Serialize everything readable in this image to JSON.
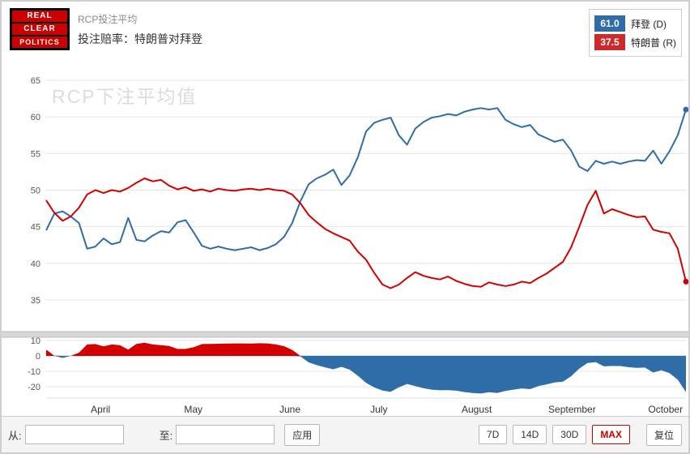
{
  "header": {
    "logo_lines": [
      "REAL",
      "CLEAR",
      "POLITICS"
    ],
    "subtitle": "RCP投注平均",
    "title": "投注赔率：特朗普对拜登"
  },
  "legend": [
    {
      "value": "61.0",
      "label": "拜登 (D)",
      "color": "#2f6da8"
    },
    {
      "value": "37.5",
      "label": "特朗普 (R)",
      "color": "#cc2b2b"
    }
  ],
  "watermark": "RCP下注平均值",
  "chart_data": {
    "type": "line",
    "title": "RCP下注平均值",
    "x_range": "April – October",
    "months": [
      {
        "label": "April",
        "pos": 0.085
      },
      {
        "label": "May",
        "pos": 0.23
      },
      {
        "label": "June",
        "pos": 0.381
      },
      {
        "label": "July",
        "pos": 0.52
      },
      {
        "label": "August",
        "pos": 0.673
      },
      {
        "label": "September",
        "pos": 0.822
      },
      {
        "label": "October",
        "pos": 0.968
      }
    ],
    "main_panel": {
      "yticks": [
        65,
        60,
        55,
        50,
        45,
        40,
        35
      ],
      "ylim": [
        33,
        66.5
      ],
      "grid": true,
      "series": [
        {
          "name": "拜登 (D)",
          "color": "#2f6da8",
          "current": 61.0,
          "values": [
            44.5,
            46.8,
            47.1,
            46.4,
            45.5,
            42.0,
            42.3,
            43.4,
            42.6,
            42.9,
            46.2,
            43.2,
            43.0,
            43.8,
            44.4,
            44.2,
            45.6,
            45.9,
            44.2,
            42.4,
            42.0,
            42.3,
            42.0,
            41.8,
            42.0,
            42.2,
            41.8,
            42.1,
            42.6,
            43.6,
            45.5,
            48.5,
            50.8,
            51.6,
            52.1,
            52.8,
            50.7,
            52.0,
            54.5,
            58.0,
            59.2,
            59.6,
            59.9,
            57.5,
            56.2,
            58.4,
            59.3,
            59.9,
            60.1,
            60.4,
            60.2,
            60.7,
            61.0,
            61.2,
            61.0,
            61.2,
            59.6,
            59.0,
            58.6,
            58.9,
            57.6,
            57.1,
            56.6,
            56.9,
            55.4,
            53.2,
            52.6,
            54.0,
            53.6,
            53.9,
            53.6,
            53.9,
            54.1,
            54.0,
            55.4,
            53.6,
            55.3,
            57.5,
            61.0
          ]
        },
        {
          "name": "特朗普 (R)",
          "color": "#d40000",
          "current": 37.5,
          "values": [
            48.6,
            46.9,
            45.8,
            46.4,
            47.6,
            49.4,
            50.0,
            49.6,
            50.0,
            49.8,
            50.3,
            51.0,
            51.6,
            51.2,
            51.4,
            50.6,
            50.1,
            50.4,
            49.9,
            50.1,
            49.8,
            50.2,
            50.0,
            49.9,
            50.1,
            50.2,
            50.0,
            50.2,
            50.0,
            49.9,
            49.4,
            48.2,
            46.6,
            45.6,
            44.7,
            44.1,
            43.6,
            43.1,
            41.6,
            40.5,
            38.7,
            37.1,
            36.6,
            37.1,
            38.0,
            38.8,
            38.3,
            38.0,
            37.8,
            38.2,
            37.6,
            37.2,
            36.9,
            36.8,
            37.4,
            37.1,
            36.9,
            37.1,
            37.5,
            37.3,
            38.0,
            38.6,
            39.4,
            40.2,
            42.2,
            45.0,
            48.0,
            49.9,
            46.8,
            47.4,
            47.0,
            46.6,
            46.3,
            46.4,
            44.6,
            44.3,
            44.1,
            42.0,
            37.5
          ]
        }
      ]
    },
    "diff_panel": {
      "yticks": [
        10,
        0,
        -10,
        -20
      ],
      "derived": "特朗普 minus 拜登 (positive area red, negative area blue)",
      "pos_color": "#d40000",
      "neg_color": "#2f6da8"
    }
  },
  "controls": {
    "from_label": "从:",
    "to_label": "至:",
    "from_value": "",
    "to_value": "",
    "apply_label": "应用",
    "range_buttons": [
      {
        "label": "7D",
        "active": false
      },
      {
        "label": "14D",
        "active": false
      },
      {
        "label": "30D",
        "active": false
      },
      {
        "label": "MAX",
        "active": true
      },
      {
        "label": "复位",
        "active": false
      }
    ]
  }
}
